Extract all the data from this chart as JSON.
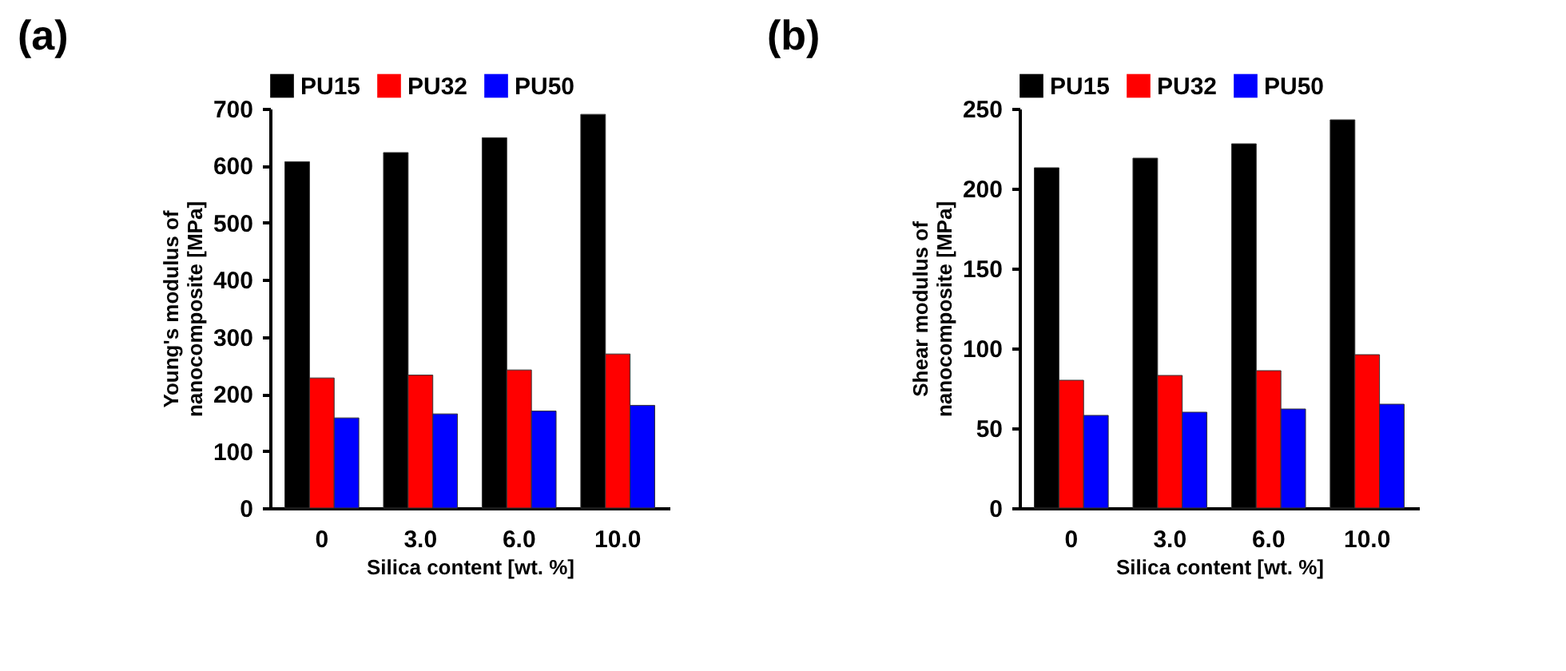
{
  "chart_data": [
    {
      "type": "bar",
      "title": "(a)",
      "xlabel": "Silica content [wt. %]",
      "ylabel": "Young's modulus of nanocomposite [MPa]",
      "categories": [
        "0",
        "3.0",
        "6.0",
        "10.0"
      ],
      "ylim": [
        0,
        700
      ],
      "yticks": [
        0,
        100,
        200,
        300,
        400,
        500,
        600,
        700
      ],
      "legend": "top",
      "series": [
        {
          "name": "PU15",
          "color": "#000000",
          "values": [
            607,
            623,
            649,
            690
          ]
        },
        {
          "name": "PU32",
          "color": "#ff0000",
          "values": [
            228,
            233,
            242,
            270
          ]
        },
        {
          "name": "PU50",
          "color": "#0000ff",
          "values": [
            158,
            165,
            170,
            180
          ]
        }
      ]
    },
    {
      "type": "bar",
      "title": "(b)",
      "xlabel": "Silica content [wt. %]",
      "ylabel": "Shear modulus of nanocomposite [MPa]",
      "categories": [
        "0",
        "3.0",
        "6.0",
        "10.0"
      ],
      "ylim": [
        0,
        250
      ],
      "yticks": [
        0,
        50,
        100,
        150,
        200,
        250
      ],
      "legend": "top",
      "series": [
        {
          "name": "PU15",
          "color": "#000000",
          "values": [
            213,
            219,
            228,
            243
          ]
        },
        {
          "name": "PU32",
          "color": "#ff0000",
          "values": [
            80,
            83,
            86,
            96
          ]
        },
        {
          "name": "PU50",
          "color": "#0000ff",
          "values": [
            58,
            60,
            62,
            65
          ]
        }
      ]
    }
  ]
}
